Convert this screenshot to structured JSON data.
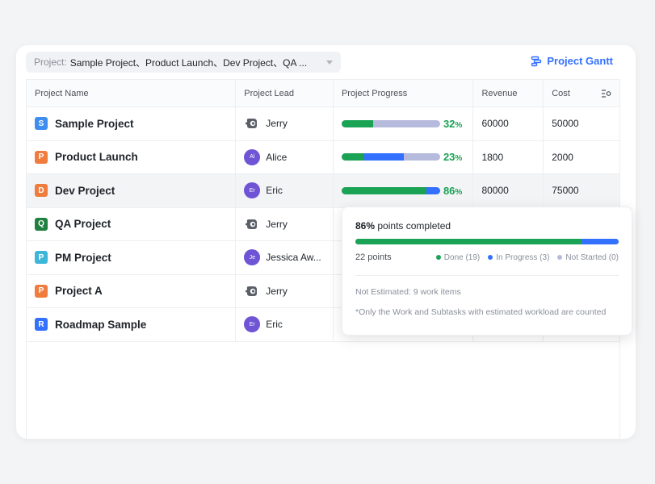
{
  "filter": {
    "label": "Project:",
    "value": "Sample Project、Product Launch、Dev Project、QA ..."
  },
  "gantt_button": {
    "label": "Project Gantt",
    "icon": "gantt-icon",
    "color": "#3370ff"
  },
  "columns": {
    "name": "Project Name",
    "lead": "Project Lead",
    "progress": "Project Progress",
    "revenue": "Revenue",
    "cost": "Cost",
    "settings_icon": "column-settings-icon"
  },
  "rows": [
    {
      "badge": "S",
      "badge_color": "#3d8ef0",
      "name": "Sample Project",
      "lead": "Jerry",
      "avatar": "bot",
      "avatar_text": "",
      "done": 32,
      "in_progress": 0,
      "pct": "32",
      "revenue": "60000",
      "cost": "50000"
    },
    {
      "badge": "P",
      "badge_color": "#f07c3d",
      "name": "Product Launch",
      "lead": "Alice",
      "avatar": "purple",
      "avatar_text": "Al",
      "done": 23,
      "in_progress": 40,
      "pct": "23",
      "revenue": "1800",
      "cost": "2000"
    },
    {
      "badge": "D",
      "badge_color": "#f07c3d",
      "name": "Dev Project",
      "lead": "Eric",
      "avatar": "purple",
      "avatar_text": "Er",
      "done": 86,
      "in_progress": 14,
      "pct": "86",
      "revenue": "80000",
      "cost": "75000"
    },
    {
      "badge": "Q",
      "badge_color": "#20803f",
      "name": "QA Project",
      "lead": "Jerry",
      "avatar": "bot",
      "avatar_text": ""
    },
    {
      "badge": "P",
      "badge_color": "#3db6d9",
      "name": "PM Project",
      "lead": "Jessica Aw...",
      "avatar": "purple",
      "avatar_text": "Je"
    },
    {
      "badge": "P",
      "badge_color": "#f07c3d",
      "name": "Project A",
      "lead": "Jerry",
      "avatar": "bot",
      "avatar_text": ""
    },
    {
      "badge": "R",
      "badge_color": "#3370ff",
      "name": "Roadmap Sample",
      "lead": "Eric",
      "avatar": "purple",
      "avatar_text": "Er"
    }
  ],
  "percent_unit": "%",
  "tooltip": {
    "pct": "86%",
    "head_rest": "points completed",
    "done_fraction": 0.86,
    "in_progress_fraction": 0.14,
    "points": "22 points",
    "legend_done": "Done (19)",
    "legend_in_progress": "In Progress (3)",
    "legend_not_started": "Not Started (0)",
    "not_estimated": "Not Estimated: 9 work items",
    "footnote": "*Only the Work and Subtasks with estimated workload are counted"
  },
  "colors": {
    "done": "#1aa355",
    "in_progress": "#3370ff",
    "not_started": "#b6bbdd"
  }
}
